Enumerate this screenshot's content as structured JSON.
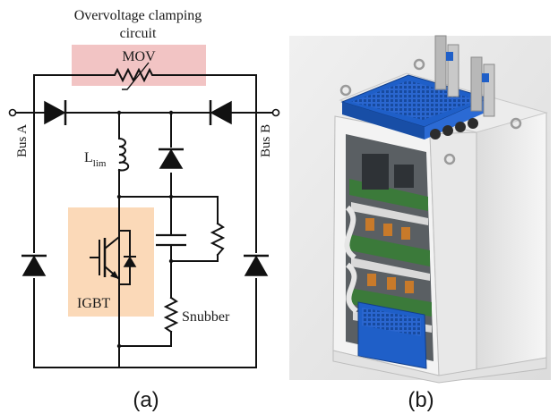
{
  "panel_a": {
    "caption": "(a)",
    "clamp_title_line1": "Overvoltage clamping",
    "clamp_title_line2": "circuit",
    "mov_label": "MOV",
    "bus_a_label": "Bus A",
    "bus_b_label": "Bus B",
    "inductor_label_main": "L",
    "inductor_label_sub": "lim",
    "igbt_label": "IGBT",
    "snubber_label": "Snubber"
  },
  "panel_b": {
    "caption": "(b)"
  },
  "colors": {
    "clamp_box": "#f2c4c4",
    "igbt_box": "#fbd9b8",
    "wire": "#111111",
    "render_background": "#e8e8e8",
    "cover_blue": "#1f5fc8",
    "frame_white": "#f4f4f4"
  }
}
